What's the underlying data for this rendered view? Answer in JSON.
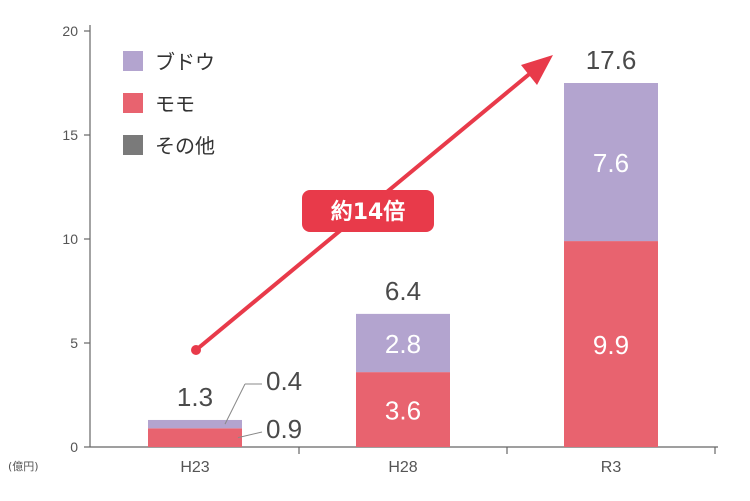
{
  "chart_data": {
    "type": "bar",
    "stacked": true,
    "categories": [
      "H23",
      "H28",
      "R3"
    ],
    "series": [
      {
        "name": "モモ",
        "values": [
          0.9,
          3.6,
          9.9
        ],
        "color": "#e8636f"
      },
      {
        "name": "ブドウ",
        "values": [
          0.4,
          2.8,
          7.6
        ],
        "color": "#b3a4cf"
      },
      {
        "name": "その他",
        "values": [
          0,
          0,
          0
        ],
        "color": "#7a7a7a"
      }
    ],
    "totals": [
      "1.3",
      "6.4",
      "17.6"
    ],
    "segment_labels": [
      [
        "0.9",
        "0.4"
      ],
      [
        "3.6",
        "2.8"
      ],
      [
        "9.9",
        "7.6"
      ]
    ],
    "unit_label": "(億円)",
    "yticks": [
      0,
      5,
      10,
      15,
      20
    ],
    "ylim": [
      0,
      20
    ],
    "grid": false,
    "legend_position": "top-left",
    "annotation": {
      "text": "約14倍",
      "color": "#e83a4a"
    }
  }
}
